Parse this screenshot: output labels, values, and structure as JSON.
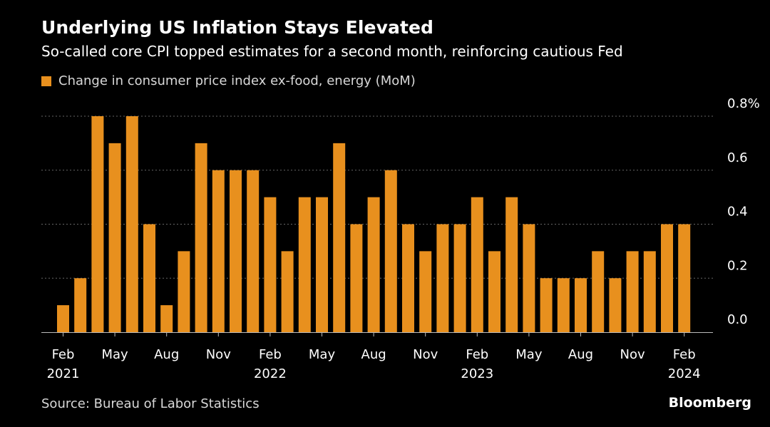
{
  "title": "Underlying US Inflation Stays Elevated",
  "subtitle": "So-called core CPI topped estimates for a second month, reinforcing cautious Fed",
  "legend_label": "Change in consumer price index ex-food, energy (MoM)",
  "source": "Source: Bureau of Labor Statistics",
  "brand": "Bloomberg",
  "colors": {
    "bar": "#E8901E",
    "background": "#000000",
    "grid": "#666666",
    "text": "#ffffff"
  },
  "chart_data": {
    "type": "bar",
    "title": "Underlying US Inflation Stays Elevated",
    "xlabel": "",
    "ylabel": "",
    "ylim": [
      0,
      0.8
    ],
    "yticks": [
      0.0,
      0.2,
      0.4,
      0.6,
      0.8
    ],
    "ytick_labels": [
      "0.0",
      "0.2",
      "0.4",
      "0.6",
      "0.8%"
    ],
    "categories": [
      "Feb 2021",
      "Mar 2021",
      "Apr 2021",
      "May 2021",
      "Jun 2021",
      "Jul 2021",
      "Aug 2021",
      "Sep 2021",
      "Oct 2021",
      "Nov 2021",
      "Dec 2021",
      "Jan 2022",
      "Feb 2022",
      "Mar 2022",
      "Apr 2022",
      "May 2022",
      "Jun 2022",
      "Jul 2022",
      "Aug 2022",
      "Sep 2022",
      "Oct 2022",
      "Nov 2022",
      "Dec 2022",
      "Jan 2023",
      "Feb 2023",
      "Mar 2023",
      "Apr 2023",
      "May 2023",
      "Jun 2023",
      "Jul 2023",
      "Aug 2023",
      "Sep 2023",
      "Oct 2023",
      "Nov 2023",
      "Dec 2023",
      "Jan 2024",
      "Feb 2024"
    ],
    "values": [
      0.1,
      0.2,
      0.8,
      0.7,
      0.8,
      0.4,
      0.1,
      0.3,
      0.7,
      0.6,
      0.6,
      0.6,
      0.5,
      0.3,
      0.5,
      0.5,
      0.7,
      0.4,
      0.5,
      0.6,
      0.4,
      0.3,
      0.4,
      0.4,
      0.5,
      0.3,
      0.5,
      0.4,
      0.2,
      0.2,
      0.2,
      0.3,
      0.2,
      0.3,
      0.3,
      0.4,
      0.4
    ],
    "x_tick_labels": [
      {
        "index": 0,
        "month": "Feb",
        "year": "2021"
      },
      {
        "index": 3,
        "month": "May",
        "year": ""
      },
      {
        "index": 6,
        "month": "Aug",
        "year": ""
      },
      {
        "index": 9,
        "month": "Nov",
        "year": ""
      },
      {
        "index": 12,
        "month": "Feb",
        "year": "2022"
      },
      {
        "index": 15,
        "month": "May",
        "year": ""
      },
      {
        "index": 18,
        "month": "Aug",
        "year": ""
      },
      {
        "index": 21,
        "month": "Nov",
        "year": ""
      },
      {
        "index": 24,
        "month": "Feb",
        "year": "2023"
      },
      {
        "index": 27,
        "month": "May",
        "year": ""
      },
      {
        "index": 30,
        "month": "Aug",
        "year": ""
      },
      {
        "index": 33,
        "month": "Nov",
        "year": ""
      },
      {
        "index": 36,
        "month": "Feb",
        "year": "2024"
      }
    ],
    "legend_position": "top-left",
    "grid": true
  }
}
